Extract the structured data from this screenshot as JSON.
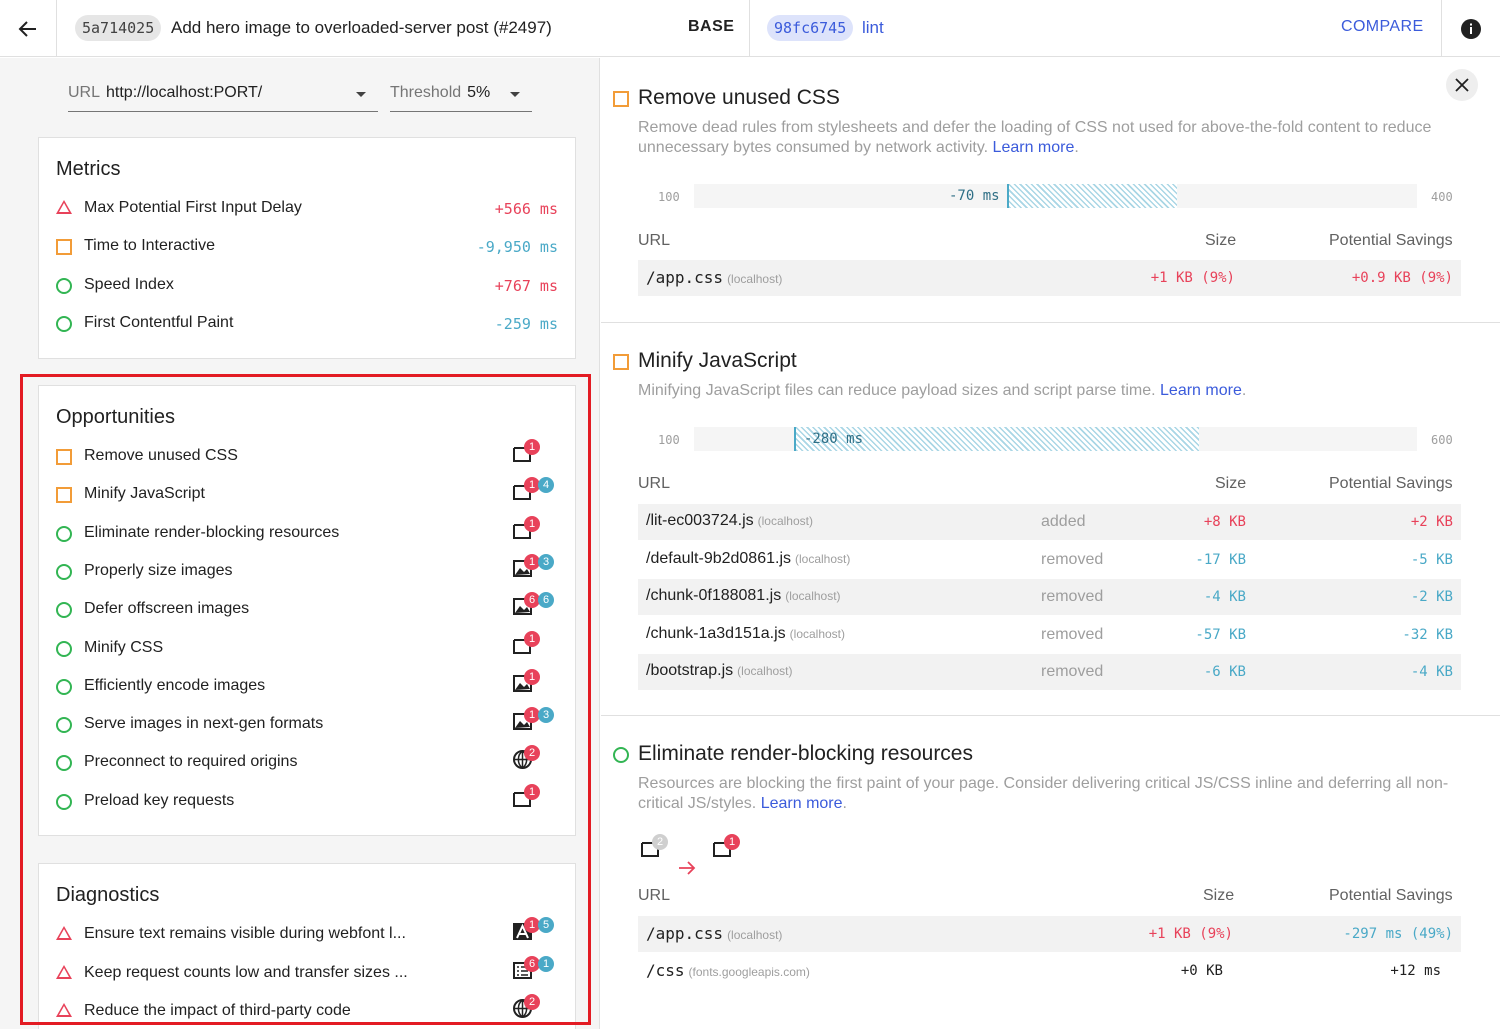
{
  "header": {
    "base_hash": "5a714025",
    "base_message": "Add hero image to overloaded-server post (#2497)",
    "base_label": "BASE",
    "compare_hash": "98fc6745",
    "compare_message": "lint",
    "compare_button": "COMPARE"
  },
  "controls": {
    "url_label": "URL",
    "url_value": "http://localhost:PORT/",
    "threshold_label": "Threshold",
    "threshold_value": "5%"
  },
  "metrics": {
    "title": "Metrics",
    "items": [
      {
        "name": "Max Potential First Input Delay",
        "value": "+566 ms",
        "status": "fail"
      },
      {
        "name": "Time to Interactive",
        "value": "-9,950 ms",
        "status": "average"
      },
      {
        "name": "Speed Index",
        "value": "+767 ms",
        "status": "pass"
      },
      {
        "name": "First Contentful Paint",
        "value": "-259 ms",
        "status": "pass"
      }
    ]
  },
  "opportunities": {
    "title": "Opportunities",
    "items": [
      {
        "name": "Remove unused CSS",
        "status": "average",
        "icon": "document-icon",
        "badges": [
          "1"
        ]
      },
      {
        "name": "Minify JavaScript",
        "status": "average",
        "icon": "document-icon",
        "badges": [
          "1",
          "4"
        ]
      },
      {
        "name": "Eliminate render-blocking resources",
        "status": "pass",
        "icon": "document-icon",
        "badges": [
          "1"
        ]
      },
      {
        "name": "Properly size images",
        "status": "pass",
        "icon": "image-icon",
        "badges": [
          "1",
          "3"
        ]
      },
      {
        "name": "Defer offscreen images",
        "status": "pass",
        "icon": "image-icon",
        "badges": [
          "6",
          "6"
        ]
      },
      {
        "name": "Minify CSS",
        "status": "pass",
        "icon": "document-icon",
        "badges": [
          "1"
        ]
      },
      {
        "name": "Efficiently encode images",
        "status": "pass",
        "icon": "image-icon",
        "badges": [
          "1"
        ]
      },
      {
        "name": "Serve images in next-gen formats",
        "status": "pass",
        "icon": "image-icon",
        "badges": [
          "1",
          "3"
        ]
      },
      {
        "name": "Preconnect to required origins",
        "status": "pass",
        "icon": "globe-icon",
        "badges": [
          "2"
        ]
      },
      {
        "name": "Preload key requests",
        "status": "pass",
        "icon": "document-icon",
        "badges": [
          "1"
        ]
      }
    ]
  },
  "diagnostics": {
    "title": "Diagnostics",
    "items": [
      {
        "name": "Ensure text remains visible during webfont l...",
        "status": "fail",
        "icon": "font-icon",
        "badges": [
          "1",
          "5"
        ]
      },
      {
        "name": "Keep request counts low and transfer sizes ...",
        "status": "fail",
        "icon": "list-icon",
        "badges": [
          "6",
          "1"
        ]
      },
      {
        "name": "Reduce the impact of third-party code",
        "status": "fail",
        "icon": "globe-icon",
        "badges": [
          "2"
        ]
      }
    ]
  },
  "details": {
    "sections": [
      {
        "title": "Remove unused CSS",
        "description": "Remove dead rules from stylesheets and defer the loading of CSS not used for above-the-fold content to reduce unnecessary bytes consumed by network activity.",
        "learn_more": "Learn more",
        "bar": {
          "min": "100",
          "max": "400",
          "label": "-70 ms"
        },
        "columns": [
          "URL",
          "Size",
          "Potential Savings"
        ],
        "rows": [
          {
            "url": "/app.css",
            "host": "(localhost)",
            "size": "+1 KB (9%)",
            "savings": "+0.9 KB (9%)"
          }
        ]
      },
      {
        "title": "Minify JavaScript",
        "description": "Minifying JavaScript files can reduce payload sizes and script parse time.",
        "learn_more": "Learn more",
        "bar": {
          "min": "100",
          "max": "600",
          "label": "-280 ms"
        },
        "columns": [
          "URL",
          "Size",
          "Potential Savings"
        ],
        "rows": [
          {
            "url": "/lit-ec003724.js",
            "host": "(localhost)",
            "state": "added",
            "size": "+8 KB",
            "savings": "+2 KB"
          },
          {
            "url": "/default-9b2d0861.js",
            "host": "(localhost)",
            "state": "removed",
            "size": "-17 KB",
            "savings": "-5 KB"
          },
          {
            "url": "/chunk-0f188081.js",
            "host": "(localhost)",
            "state": "removed",
            "size": "-4 KB",
            "savings": "-2 KB"
          },
          {
            "url": "/chunk-1a3d151a.js",
            "host": "(localhost)",
            "state": "removed",
            "size": "-57 KB",
            "savings": "-32 KB"
          },
          {
            "url": "/bootstrap.js",
            "host": "(localhost)",
            "state": "removed",
            "size": "-6 KB",
            "savings": "-4 KB"
          }
        ]
      },
      {
        "title": "Eliminate render-blocking resources",
        "description": "Resources are blocking the first paint of your page. Consider delivering critical JS/CSS inline and deferring all non-critical JS/styles.",
        "learn_more": "Learn more",
        "count_before": "2",
        "count_after": "1",
        "columns": [
          "URL",
          "Size",
          "Potential Savings"
        ],
        "rows": [
          {
            "url": "/app.css",
            "host": "(localhost)",
            "size": "+1 KB (9%)",
            "savings": "-297 ms (49%)"
          },
          {
            "url": "/css",
            "host": "(fonts.googleapis.com)",
            "size": "+0 KB",
            "savings": "+12 ms"
          }
        ]
      }
    ]
  },
  "colors": {
    "fail": "#e8425a",
    "average": "#f29c38",
    "pass": "#32b553",
    "accent": "#3b5bdb",
    "teal": "#4aa9c7"
  }
}
